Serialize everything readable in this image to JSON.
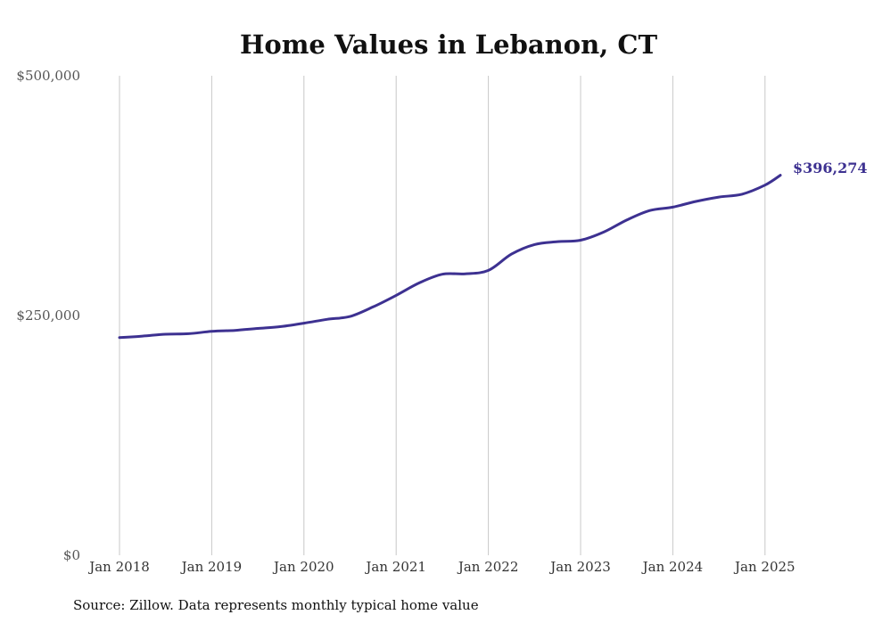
{
  "chart_data": {
    "type": "line",
    "title": "Home Values in Lebanon, CT",
    "xlabel": "",
    "ylabel": "",
    "ylim": [
      0,
      500000
    ],
    "xlim": [
      "2018-01",
      "2025-03"
    ],
    "y_tick_labels": [
      "$0",
      "$250,000",
      "$500,000"
    ],
    "y_tick_values": [
      0,
      250000,
      500000
    ],
    "x_tick_labels": [
      "Jan 2018",
      "Jan 2019",
      "Jan 2020",
      "Jan 2021",
      "Jan 2022",
      "Jan 2023",
      "Jan 2024",
      "Jan 2025"
    ],
    "x_tick_values": [
      "2018-01",
      "2019-01",
      "2020-01",
      "2021-01",
      "2022-01",
      "2023-01",
      "2024-01",
      "2025-01"
    ],
    "grid": "vertical",
    "line_color": "#3d3191",
    "series": [
      {
        "x": [
          "2018-01",
          "2018-04",
          "2018-07",
          "2018-10",
          "2019-01",
          "2019-04",
          "2019-07",
          "2019-10",
          "2020-01",
          "2020-04",
          "2020-07",
          "2020-10",
          "2021-01",
          "2021-04",
          "2021-07",
          "2021-10",
          "2022-01",
          "2022-04",
          "2022-07",
          "2022-10",
          "2023-01",
          "2023-04",
          "2023-07",
          "2023-10",
          "2024-01",
          "2024-04",
          "2024-07",
          "2024-10",
          "2025-01",
          "2025-03"
        ],
        "values": [
          227000,
          228500,
          230500,
          231000,
          233500,
          234500,
          236500,
          238500,
          242000,
          246000,
          249000,
          259000,
          271000,
          284000,
          293000,
          293500,
          297000,
          314000,
          324000,
          327000,
          328500,
          337000,
          349500,
          359500,
          363000,
          369000,
          373500,
          376500,
          386000,
          396274
        ]
      }
    ],
    "end_label": "$396,274"
  },
  "source_note": "Source: Zillow. Data represents monthly typical home value"
}
